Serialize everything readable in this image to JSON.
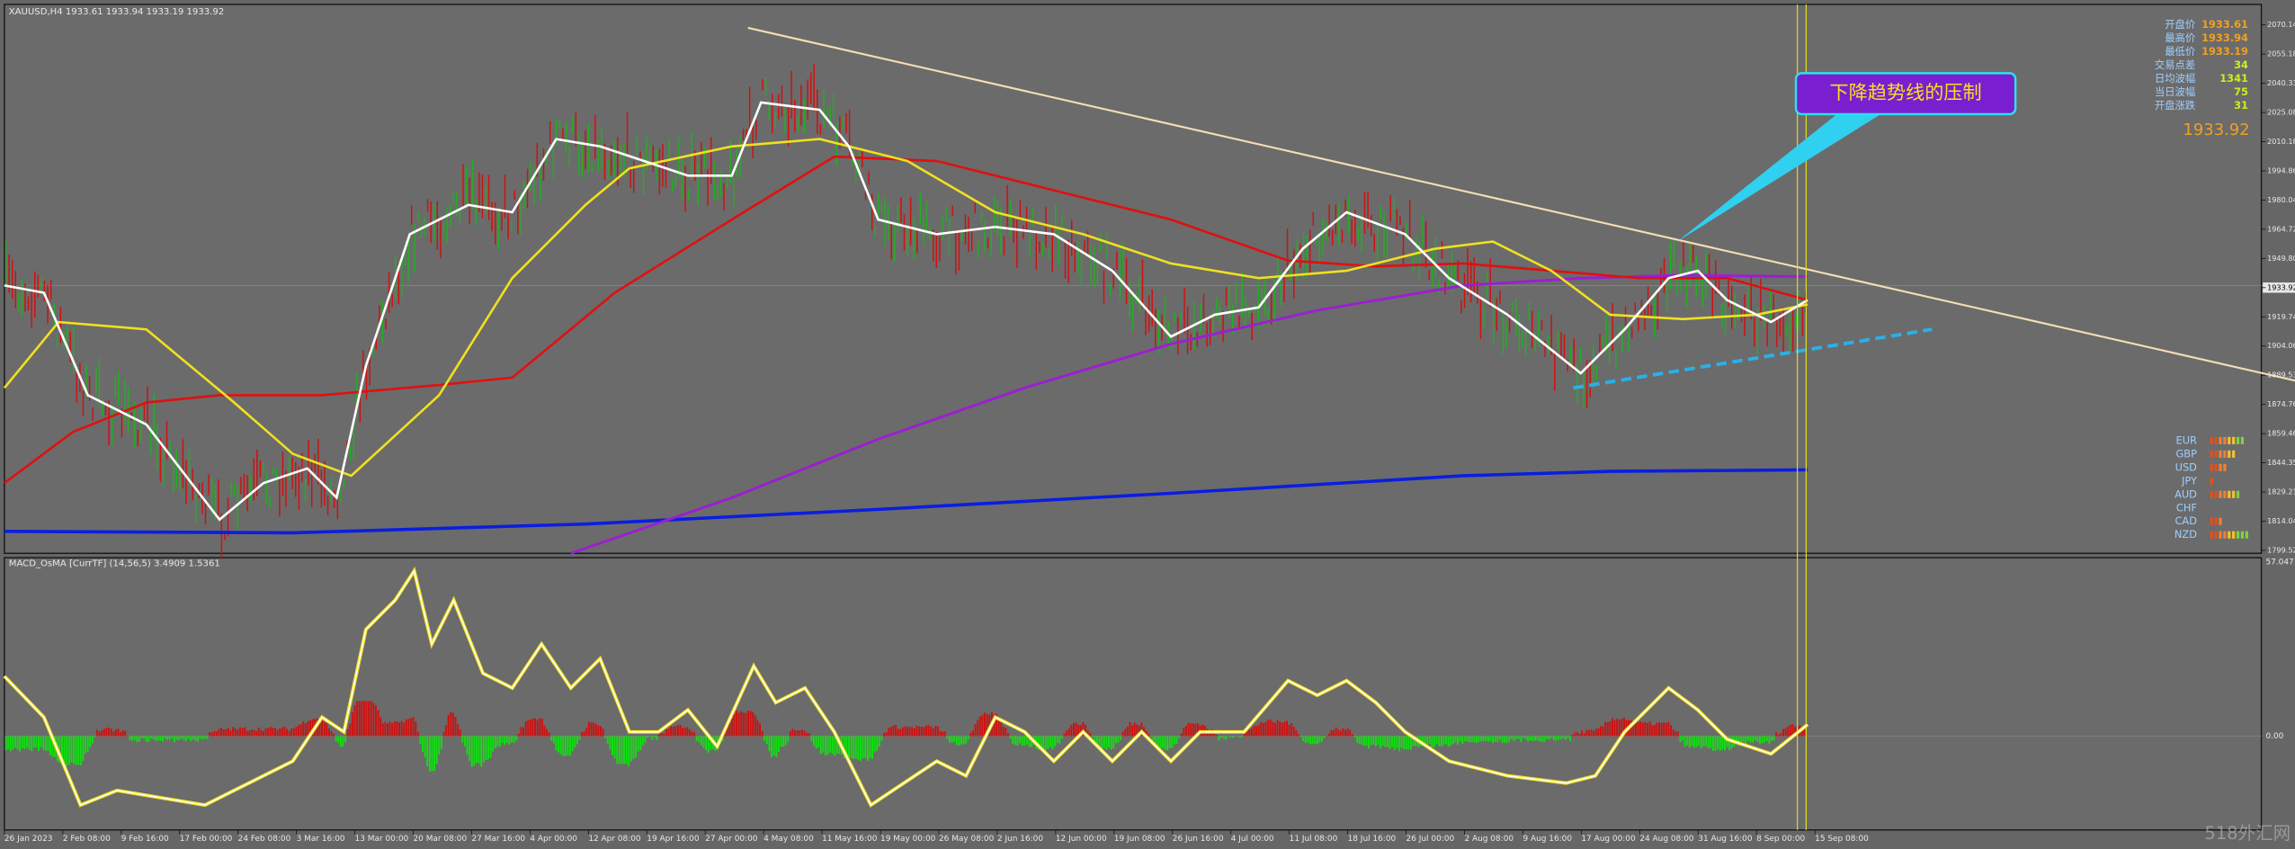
{
  "header": {
    "symbol": "XAUUSD,H4  1933.61 1933.94 1933.19 1933.92"
  },
  "price_axis": [
    "2070.14",
    "2055.18",
    "2040.33",
    "2025.08",
    "2010.18",
    "1994.86",
    "1980.04",
    "1964.72",
    "1949.80",
    "1933.92",
    "1919.74",
    "1904.06",
    "1889.53",
    "1874.76",
    "1859.46",
    "1844.35",
    "1829.21",
    "1814.04",
    "1799.52"
  ],
  "info_panel": [
    {
      "label": "开盘价",
      "value": "1933.61"
    },
    {
      "label": "最高价",
      "value": "1933.94"
    },
    {
      "label": "最低价",
      "value": "1933.19"
    },
    {
      "label": "交易点差",
      "value": "34"
    },
    {
      "label": "日均波幅",
      "value": "1341"
    },
    {
      "label": "当日波幅",
      "value": "75"
    },
    {
      "label": "开盘涨跌",
      "value": "31"
    }
  ],
  "big_price": "1933.92",
  "annotation": "下降趋势线的压制",
  "currencies": [
    "EUR",
    "GBP",
    "USD",
    "JPY",
    "AUD",
    "CHF",
    "CAD",
    "NZD"
  ],
  "macd": {
    "title": "MACD_OsMA [CurrTF] (14,56,5) 3.4909 1.5361",
    "axis": [
      "57.0471",
      "0.00"
    ]
  },
  "dates": [
    "26 Jan 2023",
    "2 Feb 08:00",
    "9 Feb 16:00",
    "17 Feb 00:00",
    "24 Feb 08:00",
    "3 Mar 16:00",
    "13 Mar 00:00",
    "20 Mar 08:00",
    "27 Mar 16:00",
    "4 Apr 00:00",
    "12 Apr 08:00",
    "19 Apr 16:00",
    "27 Apr 00:00",
    "4 May 08:00",
    "11 May 16:00",
    "19 May 00:00",
    "26 May 08:00",
    "2 Jun 16:00",
    "12 Jun 00:00",
    "19 Jun 08:00",
    "26 Jun 16:00",
    "4 Jul 00:00",
    "11 Jul 08:00",
    "18 Jul 16:00",
    "26 Jul 00:00",
    "2 Aug 08:00",
    "9 Aug 16:00",
    "17 Aug 00:00",
    "24 Aug 08:00",
    "31 Aug 16:00",
    "8 Sep 00:00",
    "15 Sep 08:00"
  ],
  "watermark": "518外汇网"
}
